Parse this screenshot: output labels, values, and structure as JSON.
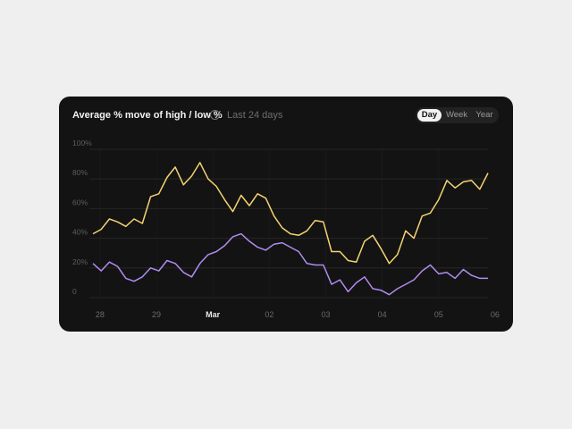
{
  "header": {
    "title": "Average % move of high / low %",
    "info_icon": "info-icon",
    "subtitle": "Last 24 days"
  },
  "range_toggle": {
    "options": [
      "Day",
      "Week",
      "Year"
    ],
    "selected": "Day"
  },
  "chart_data": {
    "type": "line",
    "title": "Average % move of high / low %",
    "ylim": [
      0,
      100
    ],
    "y_ticks": [
      0,
      20,
      40,
      60,
      80,
      100
    ],
    "y_tick_labels": [
      "0",
      "20%",
      "40%",
      "60%",
      "80%",
      "100%"
    ],
    "x_ticks": [
      "02-28",
      "02-29",
      "03-01",
      "03-02",
      "03-03",
      "03-04",
      "03-05",
      "03-06"
    ],
    "x_tick_labels": [
      "28",
      "29",
      "Mar",
      "02",
      "03",
      "04",
      "05",
      "06"
    ],
    "xlim": [
      "02-27 21:00",
      "03-05 21:00"
    ],
    "grid": true,
    "x": [
      "02-27 21:00",
      "02-28 00:30",
      "02-28 04:00",
      "02-28 07:30",
      "02-28 11:00",
      "02-28 14:30",
      "02-28 18:00",
      "02-28 21:30",
      "02-29 01:00",
      "02-29 04:30",
      "02-29 08:00",
      "02-29 11:30",
      "02-29 15:00",
      "02-29 18:30",
      "02-29 22:00",
      "03-01 01:30",
      "03-01 05:00",
      "03-01 08:30",
      "03-01 12:00",
      "03-01 15:30",
      "03-01 19:00",
      "03-01 22:30",
      "03-02 02:00",
      "03-02 05:30",
      "03-02 09:00",
      "03-02 12:30",
      "03-02 16:00",
      "03-02 19:30",
      "03-02 23:00",
      "03-03 02:30",
      "03-03 06:00",
      "03-03 09:30",
      "03-03 13:00",
      "03-03 16:30",
      "03-03 20:00",
      "03-03 23:30",
      "03-04 03:00",
      "03-04 06:30",
      "03-04 10:00",
      "03-04 13:30",
      "03-04 17:00",
      "03-04 20:30",
      "03-05 00:00",
      "03-05 03:30",
      "03-05 07:00",
      "03-05 10:30",
      "03-05 14:00",
      "03-05 17:30",
      "03-05 21:00"
    ],
    "series": [
      {
        "color": "#f4d370",
        "values": [
          43,
          46,
          53,
          51,
          48,
          53,
          50,
          68,
          70,
          81,
          88,
          76,
          82,
          91,
          80,
          75,
          66,
          58,
          69,
          62,
          70,
          67,
          55,
          47,
          43,
          42,
          45,
          52,
          51,
          31,
          31,
          25,
          24,
          38,
          42,
          33,
          23,
          29,
          45,
          40,
          55,
          57,
          66,
          79,
          74,
          78,
          79,
          73,
          84
        ]
      },
      {
        "color": "#b18cf0",
        "values": [
          23,
          18,
          24,
          21,
          13,
          11,
          14,
          20,
          18,
          25,
          23,
          17,
          14,
          23,
          29,
          31,
          35,
          41,
          43,
          38,
          34,
          32,
          36,
          37,
          34,
          31,
          23,
          22,
          22,
          9,
          12,
          4,
          10,
          14,
          6,
          5,
          2,
          6,
          9,
          12,
          18,
          22,
          16,
          17,
          13,
          19,
          15,
          13,
          13
        ]
      }
    ]
  }
}
